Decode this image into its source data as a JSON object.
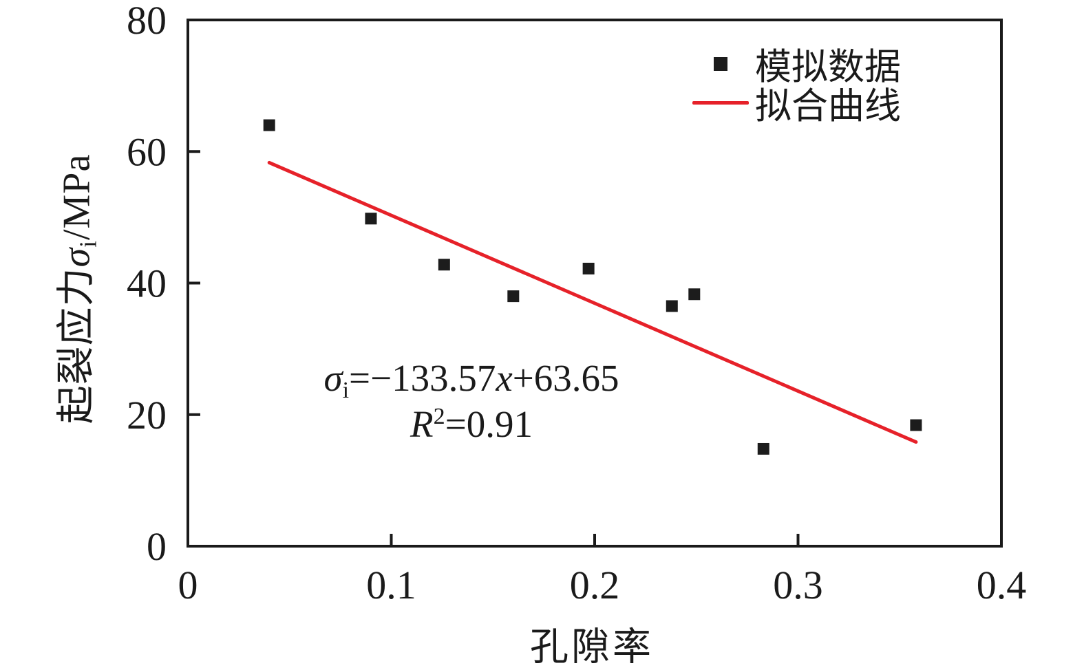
{
  "chart_data": {
    "type": "scatter",
    "title": "",
    "xlabel": "孔隙率",
    "ylabel": "起裂应力σi/MPa",
    "ylabel_parts": {
      "prefix": "起裂应力",
      "sigma": "σ",
      "sigma_sub": "i",
      "unit": "/MPa"
    },
    "xlim": [
      0,
      0.4
    ],
    "ylim": [
      0,
      80
    ],
    "x_ticks": [
      0,
      0.1,
      0.2,
      0.3,
      0.4
    ],
    "x_tick_labels": [
      "0",
      "0.1",
      "0.2",
      "0.3",
      "0.4"
    ],
    "y_ticks": [
      0,
      20,
      40,
      60,
      80
    ],
    "y_tick_labels": [
      "0",
      "20",
      "40",
      "60",
      "80"
    ],
    "grid": false,
    "axis_color": "#1a1a1a",
    "series": [
      {
        "name": "模拟数据",
        "type": "scatter",
        "marker": "square",
        "color": "#1c1c1c",
        "points": [
          [
            0.04,
            64.0
          ],
          [
            0.09,
            49.8
          ],
          [
            0.126,
            42.8
          ],
          [
            0.16,
            38.0
          ],
          [
            0.197,
            42.2
          ],
          [
            0.238,
            36.5
          ],
          [
            0.249,
            38.3
          ],
          [
            0.283,
            14.8
          ],
          [
            0.358,
            18.4
          ]
        ]
      },
      {
        "name": "拟合曲线",
        "type": "line",
        "color": "#e62129",
        "fit": {
          "slope": -133.57,
          "intercept": 63.65,
          "x_start": 0.04,
          "x_end": 0.358
        }
      }
    ],
    "legend": {
      "position": "top-right",
      "entries": [
        {
          "label": "模拟数据",
          "marker": "square",
          "color": "#1c1c1c"
        },
        {
          "label": "拟合曲线",
          "marker": "line",
          "color": "#e62129"
        }
      ]
    },
    "annotation": {
      "equation": "σi=−133.57x+63.65",
      "r_squared": "R²=0.91",
      "parts": {
        "sigma": "σ",
        "sigma_sub": "i",
        "eq_mid": "=−133.57",
        "x_var": "x",
        "eq_end": "+63.65",
        "r": "R",
        "r_sup": "2",
        "r_val": "=0.91"
      }
    }
  }
}
